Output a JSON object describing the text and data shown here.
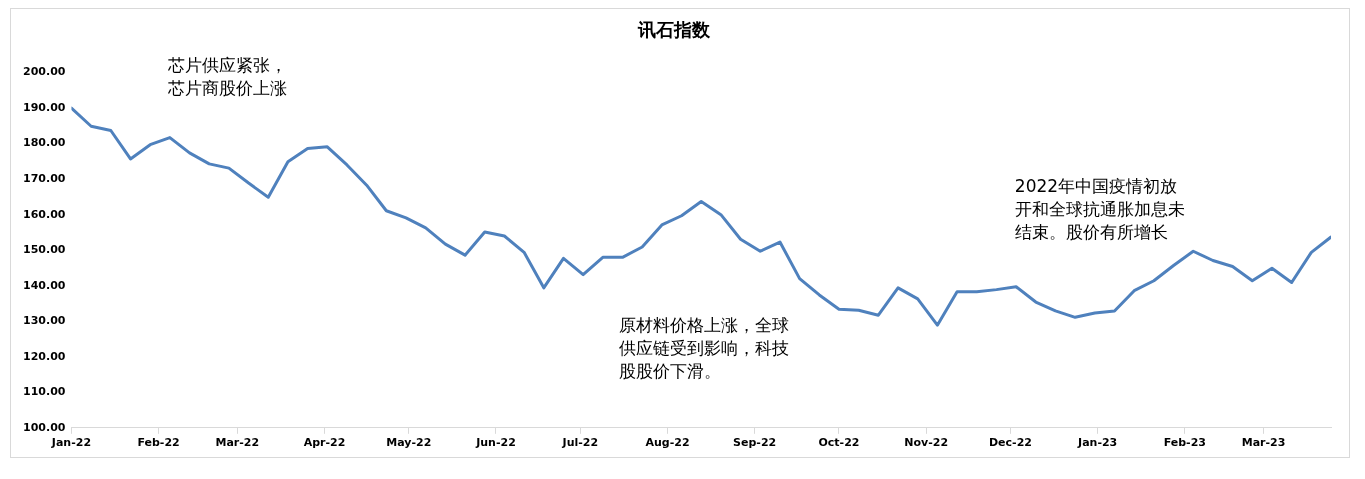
{
  "chart_data": {
    "type": "line",
    "title": "讯石指数",
    "x": [
      "2022-01-01",
      "2022-01-08",
      "2022-01-15",
      "2022-01-22",
      "2022-01-29",
      "2022-02-05",
      "2022-02-12",
      "2022-02-19",
      "2022-02-26",
      "2022-03-05",
      "2022-03-12",
      "2022-03-19",
      "2022-03-26",
      "2022-04-02",
      "2022-04-09",
      "2022-04-16",
      "2022-04-23",
      "2022-04-30",
      "2022-05-07",
      "2022-05-14",
      "2022-05-21",
      "2022-05-28",
      "2022-06-04",
      "2022-06-11",
      "2022-06-18",
      "2022-06-25",
      "2022-07-02",
      "2022-07-09",
      "2022-07-16",
      "2022-07-23",
      "2022-07-30",
      "2022-08-06",
      "2022-08-13",
      "2022-08-20",
      "2022-08-27",
      "2022-09-03",
      "2022-09-10",
      "2022-09-17",
      "2022-09-24",
      "2022-10-01",
      "2022-10-08",
      "2022-10-15",
      "2022-10-22",
      "2022-10-29",
      "2022-11-05",
      "2022-11-12",
      "2022-11-19",
      "2022-11-26",
      "2022-12-03",
      "2022-12-10",
      "2022-12-17",
      "2022-12-24",
      "2022-12-31",
      "2023-01-07",
      "2023-01-14",
      "2023-01-21",
      "2023-01-28",
      "2023-02-04",
      "2023-02-11",
      "2023-02-18",
      "2023-02-25",
      "2023-03-04",
      "2023-03-11",
      "2023-03-18",
      "2023-03-25"
    ],
    "series": [
      {
        "color": "#4f81bd",
        "values": [
          190,
          184.9,
          183.7,
          175.7,
          179.7,
          181.7,
          177.4,
          174.3,
          173.1,
          168.9,
          164.9,
          174.9,
          178.6,
          179.1,
          174,
          168.3,
          161.1,
          159.1,
          156.3,
          151.7,
          148.6,
          155.1,
          154,
          149.4,
          139.4,
          147.7,
          143.1,
          148,
          148,
          150.9,
          157.1,
          159.7,
          163.7,
          160,
          153.1,
          149.7,
          152.3,
          142,
          137.4,
          133.4,
          133.1,
          131.7,
          139.4,
          136.3,
          128.9,
          138.3,
          138.3,
          138.9,
          139.7,
          135.4,
          132.9,
          131.1,
          132.3,
          132.9,
          138.6,
          141.4,
          145.7,
          149.7,
          147.1,
          145.4,
          141.4,
          144.9,
          140.9,
          149.4,
          153.7
        ]
      }
    ],
    "xlim": [
      "2022-01-01",
      "2023-03-25"
    ],
    "xticks": [
      {
        "value": "2022-01-01",
        "label": "Jan-22"
      },
      {
        "value": "2022-02-01",
        "label": "Feb-22"
      },
      {
        "value": "2022-03-01",
        "label": "Mar-22"
      },
      {
        "value": "2022-04-01",
        "label": "Apr-22"
      },
      {
        "value": "2022-05-01",
        "label": "May-22"
      },
      {
        "value": "2022-06-01",
        "label": "Jun-22"
      },
      {
        "value": "2022-07-01",
        "label": "Jul-22"
      },
      {
        "value": "2022-08-01",
        "label": "Aug-22"
      },
      {
        "value": "2022-09-01",
        "label": "Sep-22"
      },
      {
        "value": "2022-10-01",
        "label": "Oct-22"
      },
      {
        "value": "2022-11-01",
        "label": "Nov-22"
      },
      {
        "value": "2022-12-01",
        "label": "Dec-22"
      },
      {
        "value": "2023-01-01",
        "label": "Jan-23"
      },
      {
        "value": "2023-02-01",
        "label": "Feb-23"
      },
      {
        "value": "2023-03-01",
        "label": "Mar-23"
      }
    ],
    "ylim": [
      100,
      200
    ],
    "yticks": [
      {
        "value": 100,
        "label": "100.00"
      },
      {
        "value": 110,
        "label": "110.00"
      },
      {
        "value": 120,
        "label": "120.00"
      },
      {
        "value": 130,
        "label": "130.00"
      },
      {
        "value": 140,
        "label": "140.00"
      },
      {
        "value": 150,
        "label": "150.00"
      },
      {
        "value": 160,
        "label": "160.00"
      },
      {
        "value": 170,
        "label": "170.00"
      },
      {
        "value": 180,
        "label": "180.00"
      },
      {
        "value": 190,
        "label": "190.00"
      },
      {
        "value": 200,
        "label": "200.00"
      }
    ],
    "annotations": [
      "芯片供应紧张，芯片商股价上涨",
      "原材料价格上涨，全球供应链受到影响，科技股股价下滑。",
      "2022年中国疫情初放开和全球抗通胀加息未结束。股价有所增长"
    ],
    "grid": false,
    "legend": false,
    "marker": "none",
    "line_style": "solid"
  }
}
